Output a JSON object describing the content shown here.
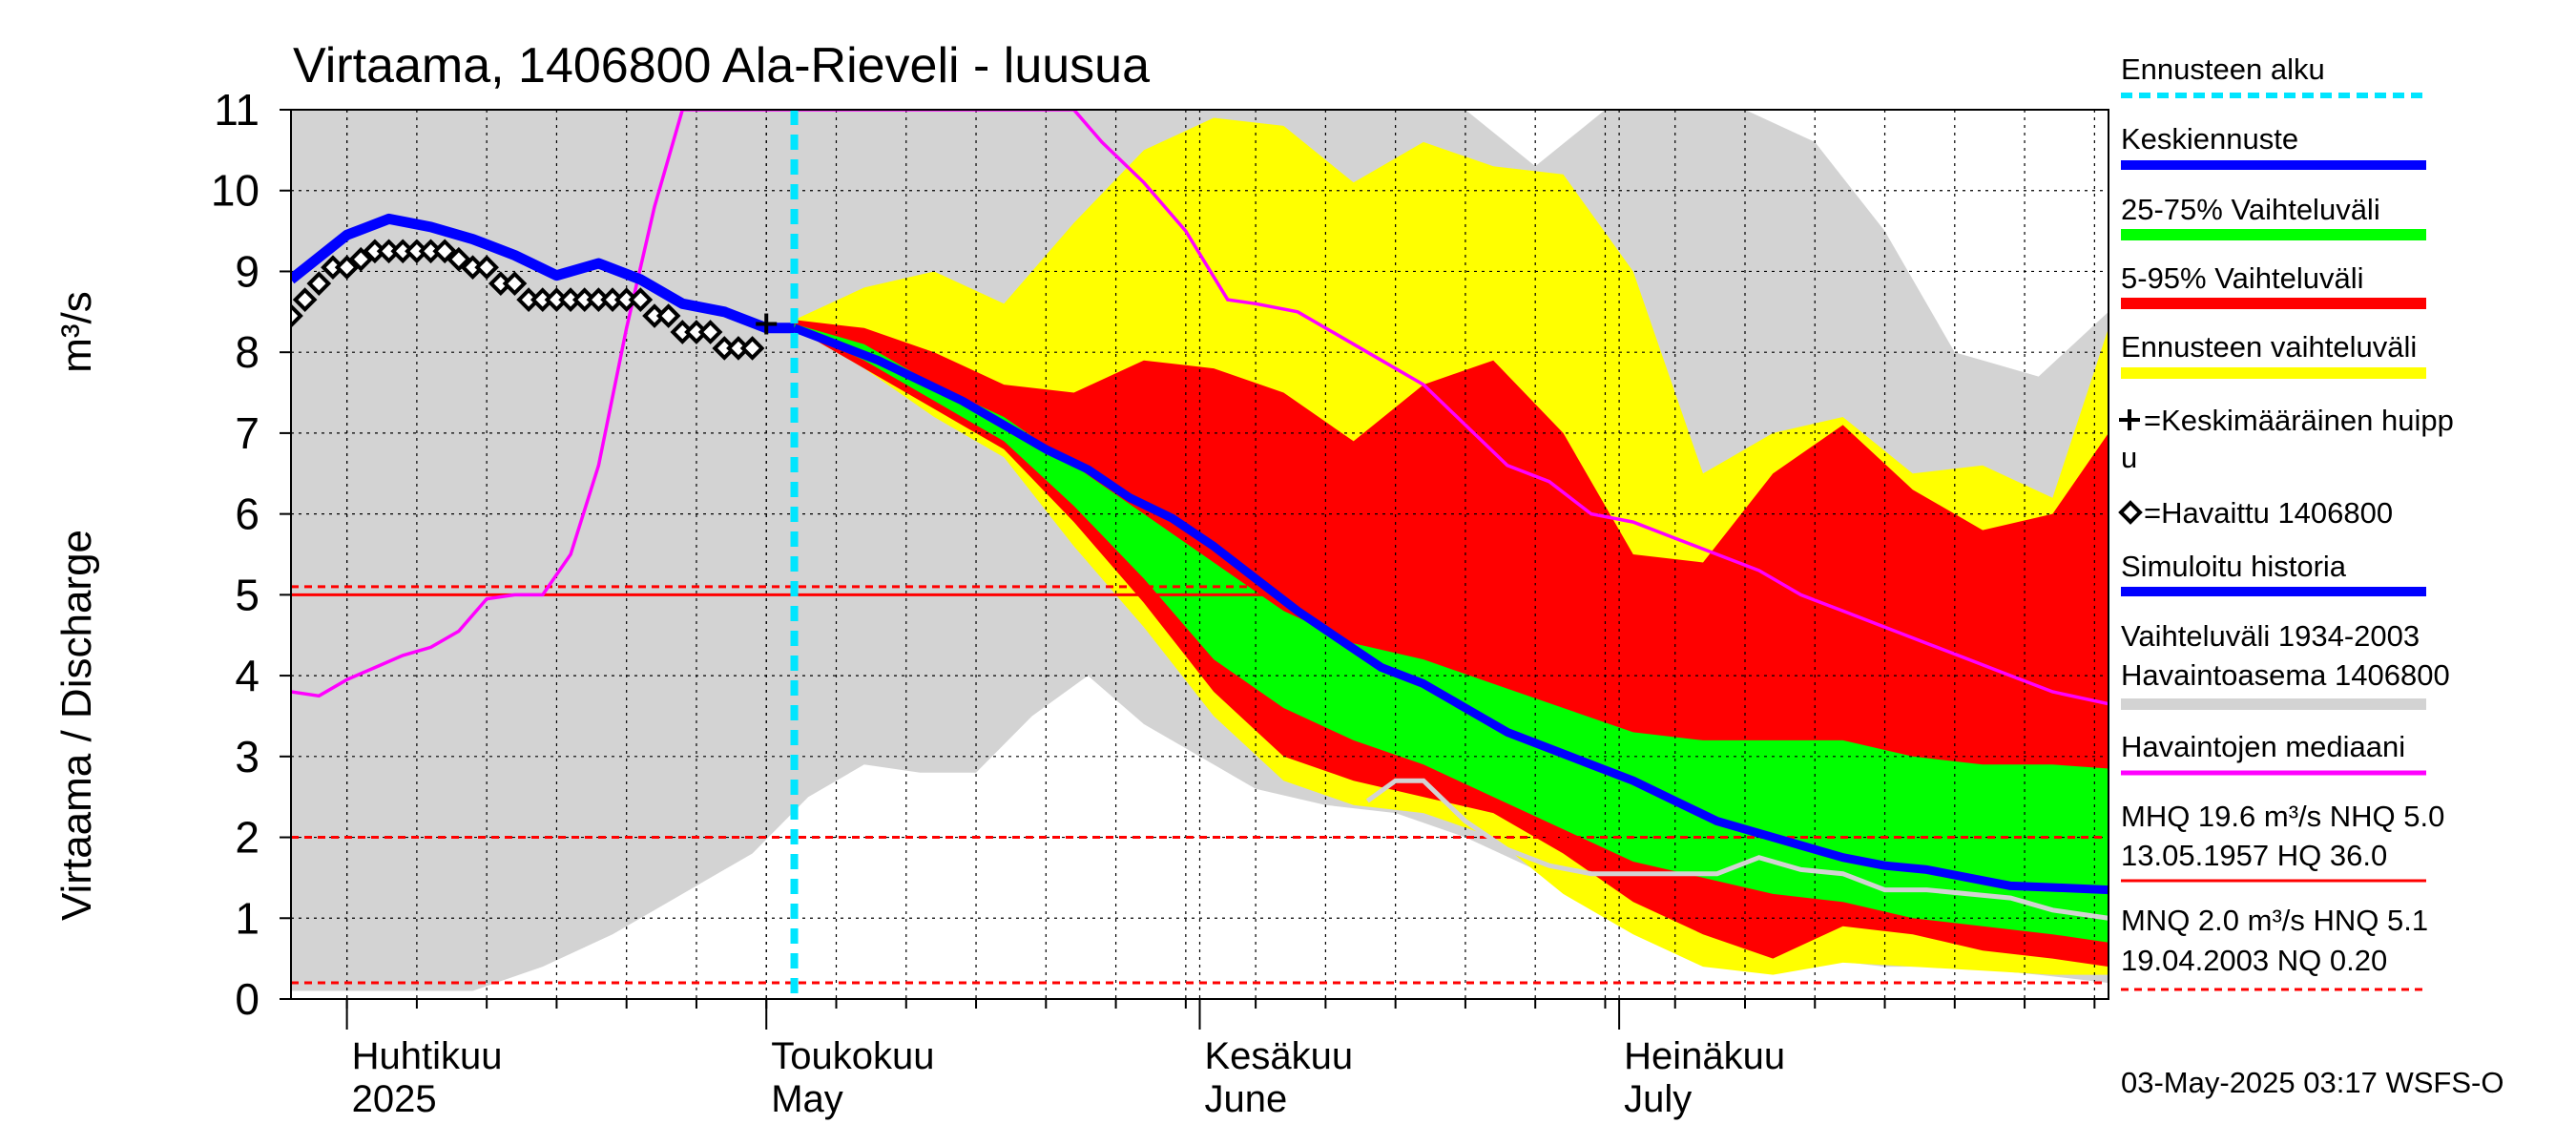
{
  "chart_data": {
    "type": "area",
    "title": "Virtaama, 1406800 Ala-Rieveli - luusua",
    "ylabel": "Virtaama / Discharge",
    "yunit": "m³/s",
    "ylim": [
      0,
      11
    ],
    "y_ticks": [
      0,
      1,
      2,
      3,
      4,
      5,
      6,
      7,
      8,
      9,
      10,
      11
    ],
    "xlim": [
      "2025-03-28",
      "2025-08-05"
    ],
    "x_month_labels": [
      {
        "date": "2025-04-01",
        "line1": "Huhtikuu",
        "line2": "2025"
      },
      {
        "date": "2025-05-01",
        "line1": "Toukokuu",
        "line2": "May"
      },
      {
        "date": "2025-06-01",
        "line1": "Kesäkuu",
        "line2": "June"
      },
      {
        "date": "2025-07-01",
        "line1": "Heinäkuu",
        "line2": "July"
      }
    ],
    "grid": true,
    "legend_position": "right",
    "forecast_start": "2025-05-03",
    "colors": {
      "historic_range": "#d3d3d3",
      "forecast_range": "#ffff00",
      "range_5_95": "#ff0000",
      "range_25_75": "#00ff00",
      "mean_forecast": "#0000ff",
      "simulated_history": "#0000ff",
      "observed_median": "#ff00ff",
      "forecast_start": "#00e5ff",
      "reference_solid": "#ff0000",
      "reference_dashed": "#ff0000",
      "median_history_line": "#d3d3d3"
    },
    "reference_lines": [
      {
        "value": 5.0,
        "style": "solid"
      },
      {
        "value": 5.1,
        "style": "dashed"
      },
      {
        "value": 2.0,
        "style": "dashed"
      },
      {
        "value": 0.2,
        "style": "dashed"
      }
    ],
    "series": [
      {
        "key": "historic_upper",
        "x": [
          "2025-03-28",
          "2025-04-05",
          "2025-04-15",
          "2025-04-25",
          "2025-05-01",
          "2025-05-05",
          "2025-05-10",
          "2025-05-15",
          "2025-05-20",
          "2025-05-25",
          "2025-05-31",
          "2025-06-05",
          "2025-06-10",
          "2025-06-15",
          "2025-06-20",
          "2025-06-25",
          "2025-06-30",
          "2025-07-05",
          "2025-07-10",
          "2025-07-15",
          "2025-07-20",
          "2025-07-25",
          "2025-07-31",
          "2025-08-05"
        ],
        "y": [
          11,
          11,
          11,
          11,
          11,
          11,
          11,
          11,
          11,
          11,
          11,
          11,
          11,
          11,
          11,
          10.3,
          11,
          11,
          11,
          10.6,
          9.5,
          8.0,
          7.7,
          8.5
        ]
      },
      {
        "key": "historic_lower",
        "x": [
          "2025-03-28",
          "2025-04-10",
          "2025-04-15",
          "2025-04-20",
          "2025-04-25",
          "2025-04-30",
          "2025-05-04",
          "2025-05-08",
          "2025-05-12",
          "2025-05-16",
          "2025-05-20",
          "2025-05-24",
          "2025-05-28",
          "2025-06-01",
          "2025-06-05",
          "2025-06-10",
          "2025-06-15",
          "2025-06-20",
          "2025-06-25",
          "2025-06-30",
          "2025-07-05",
          "2025-07-10",
          "2025-07-15",
          "2025-07-20",
          "2025-07-25",
          "2025-07-31",
          "2025-08-05"
        ],
        "y": [
          0.1,
          0.1,
          0.4,
          0.8,
          1.3,
          1.8,
          2.5,
          2.9,
          2.8,
          2.8,
          3.5,
          4.0,
          3.4,
          3.0,
          2.6,
          2.4,
          2.3,
          2.0,
          1.6,
          1.1,
          0.6,
          0.4,
          0.5,
          0.4,
          0.4,
          0.3,
          0.2
        ]
      },
      {
        "key": "forecast_upper",
        "x": [
          "2025-05-03",
          "2025-05-08",
          "2025-05-13",
          "2025-05-18",
          "2025-05-23",
          "2025-05-28",
          "2025-06-02",
          "2025-06-07",
          "2025-06-12",
          "2025-06-17",
          "2025-06-22",
          "2025-06-27",
          "2025-07-02",
          "2025-07-07",
          "2025-07-12",
          "2025-07-17",
          "2025-07-22",
          "2025-07-27",
          "2025-08-01",
          "2025-08-05"
        ],
        "y": [
          8.4,
          8.8,
          9.0,
          8.6,
          9.6,
          10.5,
          10.9,
          10.8,
          10.1,
          10.6,
          10.3,
          10.2,
          9.0,
          6.5,
          7.0,
          7.2,
          6.5,
          6.6,
          6.2,
          8.3
        ]
      },
      {
        "key": "forecast_lower",
        "x": [
          "2025-05-03",
          "2025-05-08",
          "2025-05-13",
          "2025-05-18",
          "2025-05-23",
          "2025-05-28",
          "2025-06-02",
          "2025-06-07",
          "2025-06-12",
          "2025-06-17",
          "2025-06-22",
          "2025-06-27",
          "2025-07-02",
          "2025-07-07",
          "2025-07-12",
          "2025-07-17",
          "2025-07-22",
          "2025-07-27",
          "2025-08-01",
          "2025-08-05"
        ],
        "y": [
          8.3,
          7.8,
          7.2,
          6.7,
          5.6,
          4.6,
          3.5,
          2.7,
          2.4,
          2.3,
          2.0,
          1.3,
          0.8,
          0.4,
          0.3,
          0.45,
          0.4,
          0.35,
          0.3,
          0.3
        ]
      },
      {
        "key": "p95",
        "x": [
          "2025-05-03",
          "2025-05-08",
          "2025-05-13",
          "2025-05-18",
          "2025-05-23",
          "2025-05-28",
          "2025-06-02",
          "2025-06-07",
          "2025-06-12",
          "2025-06-17",
          "2025-06-22",
          "2025-06-27",
          "2025-07-02",
          "2025-07-07",
          "2025-07-12",
          "2025-07-17",
          "2025-07-22",
          "2025-07-27",
          "2025-08-01",
          "2025-08-05"
        ],
        "y": [
          8.4,
          8.3,
          8.0,
          7.6,
          7.5,
          7.9,
          7.8,
          7.5,
          6.9,
          7.6,
          7.9,
          7.0,
          5.5,
          5.4,
          6.5,
          7.1,
          6.3,
          5.8,
          6.0,
          7.0
        ]
      },
      {
        "key": "p5",
        "x": [
          "2025-05-03",
          "2025-05-08",
          "2025-05-13",
          "2025-05-18",
          "2025-05-23",
          "2025-05-28",
          "2025-06-02",
          "2025-06-07",
          "2025-06-12",
          "2025-06-17",
          "2025-06-22",
          "2025-06-27",
          "2025-07-02",
          "2025-07-07",
          "2025-07-12",
          "2025-07-17",
          "2025-07-22",
          "2025-07-27",
          "2025-08-01",
          "2025-08-05"
        ],
        "y": [
          8.3,
          7.8,
          7.3,
          6.8,
          5.9,
          4.9,
          3.8,
          3.0,
          2.7,
          2.5,
          2.3,
          1.8,
          1.2,
          0.8,
          0.5,
          0.9,
          0.8,
          0.6,
          0.5,
          0.4
        ]
      },
      {
        "key": "p75",
        "x": [
          "2025-05-03",
          "2025-05-08",
          "2025-05-13",
          "2025-05-18",
          "2025-05-23",
          "2025-05-28",
          "2025-06-02",
          "2025-06-07",
          "2025-06-12",
          "2025-06-17",
          "2025-06-22",
          "2025-06-27",
          "2025-07-02",
          "2025-07-07",
          "2025-07-12",
          "2025-07-17",
          "2025-07-22",
          "2025-07-27",
          "2025-08-01",
          "2025-08-05"
        ],
        "y": [
          8.35,
          8.1,
          7.6,
          7.2,
          6.6,
          6.0,
          5.4,
          4.8,
          4.4,
          4.2,
          3.9,
          3.6,
          3.3,
          3.2,
          3.2,
          3.2,
          3.0,
          2.9,
          2.9,
          2.85
        ]
      },
      {
        "key": "p25",
        "x": [
          "2025-05-03",
          "2025-05-08",
          "2025-05-13",
          "2025-05-18",
          "2025-05-23",
          "2025-05-28",
          "2025-06-02",
          "2025-06-07",
          "2025-06-12",
          "2025-06-17",
          "2025-06-22",
          "2025-06-27",
          "2025-07-02",
          "2025-07-07",
          "2025-07-12",
          "2025-07-17",
          "2025-07-22",
          "2025-07-27",
          "2025-08-01",
          "2025-08-05"
        ],
        "y": [
          8.3,
          7.9,
          7.4,
          6.9,
          6.1,
          5.2,
          4.2,
          3.6,
          3.2,
          2.9,
          2.5,
          2.1,
          1.7,
          1.5,
          1.3,
          1.2,
          1.0,
          0.9,
          0.8,
          0.7
        ]
      },
      {
        "key": "mean_forecast",
        "name": "Keskiennuste",
        "x": [
          "2025-05-03",
          "2025-05-06",
          "2025-05-09",
          "2025-05-12",
          "2025-05-15",
          "2025-05-18",
          "2025-05-21",
          "2025-05-24",
          "2025-05-27",
          "2025-05-30",
          "2025-06-02",
          "2025-06-05",
          "2025-06-08",
          "2025-06-11",
          "2025-06-14",
          "2025-06-17",
          "2025-06-20",
          "2025-06-23",
          "2025-06-26",
          "2025-06-29",
          "2025-07-02",
          "2025-07-05",
          "2025-07-08",
          "2025-07-11",
          "2025-07-14",
          "2025-07-17",
          "2025-07-20",
          "2025-07-23",
          "2025-07-26",
          "2025-07-29",
          "2025-08-01",
          "2025-08-05"
        ],
        "y": [
          8.3,
          8.1,
          7.9,
          7.65,
          7.4,
          7.1,
          6.8,
          6.55,
          6.2,
          5.95,
          5.6,
          5.2,
          4.8,
          4.45,
          4.1,
          3.9,
          3.6,
          3.3,
          3.1,
          2.9,
          2.7,
          2.45,
          2.2,
          2.05,
          1.9,
          1.75,
          1.65,
          1.6,
          1.5,
          1.4,
          1.38,
          1.35
        ]
      },
      {
        "key": "simulated_history",
        "name": "Simuloitu historia",
        "x": [
          "2025-03-28",
          "2025-04-01",
          "2025-04-04",
          "2025-04-07",
          "2025-04-10",
          "2025-04-13",
          "2025-04-16",
          "2025-04-19",
          "2025-04-22",
          "2025-04-25",
          "2025-04-28",
          "2025-05-01",
          "2025-05-03"
        ],
        "y": [
          8.9,
          9.45,
          9.65,
          9.55,
          9.4,
          9.2,
          8.95,
          9.1,
          8.9,
          8.6,
          8.5,
          8.3,
          8.3
        ]
      },
      {
        "key": "observed",
        "name": "=Havaittu 1406800",
        "x": [
          "2025-03-28",
          "2025-03-29",
          "2025-03-30",
          "2025-03-31",
          "2025-04-01",
          "2025-04-02",
          "2025-04-03",
          "2025-04-04",
          "2025-04-05",
          "2025-04-06",
          "2025-04-07",
          "2025-04-08",
          "2025-04-09",
          "2025-04-10",
          "2025-04-11",
          "2025-04-12",
          "2025-04-13",
          "2025-04-14",
          "2025-04-15",
          "2025-04-16",
          "2025-04-17",
          "2025-04-18",
          "2025-04-19",
          "2025-04-20",
          "2025-04-21",
          "2025-04-22",
          "2025-04-23",
          "2025-04-24",
          "2025-04-25",
          "2025-04-26",
          "2025-04-27",
          "2025-04-28",
          "2025-04-29",
          "2025-04-30"
        ],
        "y": [
          8.45,
          8.65,
          8.85,
          9.05,
          9.05,
          9.15,
          9.25,
          9.25,
          9.25,
          9.25,
          9.25,
          9.25,
          9.15,
          9.05,
          9.05,
          8.85,
          8.85,
          8.65,
          8.65,
          8.65,
          8.65,
          8.65,
          8.65,
          8.65,
          8.65,
          8.65,
          8.45,
          8.45,
          8.25,
          8.25,
          8.25,
          8.05,
          8.05,
          8.05
        ]
      },
      {
        "key": "peak_marker",
        "name": "=Keskimääräinen huippu",
        "x": [
          "2025-05-01"
        ],
        "y": [
          8.35
        ]
      },
      {
        "key": "observed_median",
        "name": "Havaintojen mediaani",
        "x": [
          "2025-03-28",
          "2025-03-30",
          "2025-04-01",
          "2025-04-03",
          "2025-04-05",
          "2025-04-07",
          "2025-04-09",
          "2025-04-11",
          "2025-04-13",
          "2025-04-15",
          "2025-04-17",
          "2025-04-19",
          "2025-04-21",
          "2025-04-23",
          "2025-04-25",
          "2025-05-23",
          "2025-05-25",
          "2025-05-28",
          "2025-05-31",
          "2025-06-03",
          "2025-06-05",
          "2025-06-08",
          "2025-06-11",
          "2025-06-14",
          "2025-06-17",
          "2025-06-20",
          "2025-06-23",
          "2025-06-26",
          "2025-06-29",
          "2025-07-02",
          "2025-07-05",
          "2025-07-08",
          "2025-07-11",
          "2025-07-14",
          "2025-07-17",
          "2025-07-20",
          "2025-07-23",
          "2025-07-26",
          "2025-07-29",
          "2025-08-01",
          "2025-08-05"
        ],
        "y": [
          3.8,
          3.75,
          3.95,
          4.1,
          4.25,
          4.35,
          4.55,
          4.95,
          5.0,
          5.0,
          5.5,
          6.6,
          8.3,
          9.8,
          11.0,
          11.0,
          10.6,
          10.1,
          9.5,
          8.65,
          8.6,
          8.5,
          8.2,
          7.9,
          7.6,
          7.1,
          6.6,
          6.4,
          6.0,
          5.9,
          5.7,
          5.5,
          5.3,
          5.0,
          4.8,
          4.6,
          4.4,
          4.2,
          4.0,
          3.8,
          3.65
        ]
      },
      {
        "key": "median_history",
        "name": "Havaintoasema 1406800",
        "x": [
          "2025-06-13",
          "2025-06-15",
          "2025-06-17",
          "2025-06-20",
          "2025-06-23",
          "2025-06-26",
          "2025-06-29",
          "2025-07-02",
          "2025-07-05",
          "2025-07-08",
          "2025-07-11",
          "2025-07-14",
          "2025-07-17",
          "2025-07-20",
          "2025-07-23",
          "2025-07-26",
          "2025-07-29",
          "2025-08-01",
          "2025-08-05"
        ],
        "y": [
          2.45,
          2.7,
          2.7,
          2.2,
          1.85,
          1.65,
          1.55,
          1.55,
          1.55,
          1.55,
          1.75,
          1.6,
          1.55,
          1.35,
          1.35,
          1.3,
          1.25,
          1.1,
          1.0
        ]
      }
    ]
  },
  "legend": {
    "ennusteen_alku": "Ennusteen alku",
    "keskiennuste": "Keskiennuste",
    "range_25_75": "25-75% Vaihteluväli",
    "range_5_95": "5-95% Vaihteluväli",
    "ennusteen_vaihteluvali": "Ennusteen vaihteluväli",
    "peak_line1": "=Keskimääräinen huipp",
    "peak_line2": "u",
    "havaittu": "=Havaittu 1406800",
    "simuloitu": "Simuloitu historia",
    "vaihteluvali_line1": "Vaihteluväli 1934-2003",
    "vaihteluvali_line2": " Havaintoasema 1406800",
    "mediaani": "Havaintojen mediaani",
    "mhq_line1": "MHQ 19.6 m³/s NHQ  5.0",
    "mhq_line2": "13.05.1957 HQ 36.0",
    "mnq_line1": "MNQ  2.0 m³/s HNQ  5.1",
    "mnq_line2": "19.04.2003 NQ 0.20"
  },
  "footer": "03-May-2025 03:17 WSFS-O"
}
